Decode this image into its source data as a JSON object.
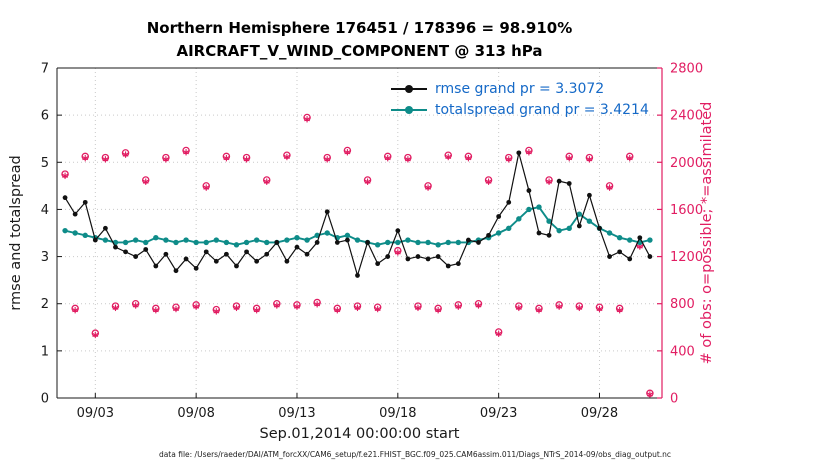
{
  "figure": {
    "title_line1": "Northern Hemisphere 176451 / 178396 = 98.910%",
    "title_line2": "AIRCRAFT_V_WIND_COMPONENT @ 313 hPa",
    "xlabel": "Sep.01,2014 00:00:00 start",
    "ylabel_left": "rmse and totalspread",
    "ylabel_right": "# of obs: o=possible; *=assimilated",
    "caption": "data file: /Users/raeder/DAI/ATM_forcXX/CAM6_setup/f.e21.FHIST_BGC.f09_025.CAM6assim.011/Diags_NTrS_2014-09/obs_diag_output.nc",
    "legend": [
      {
        "label": "rmse grand pr = 3.3072",
        "color_key": "black"
      },
      {
        "label": "totalspread grand pr = 3.4214",
        "color_key": "teal"
      }
    ],
    "colors": {
      "black": "#111111",
      "teal": "#0e8c89",
      "pink": "#e11d62",
      "blue": "#1569c7",
      "axis": "#1a1a1a",
      "grid": "#c9c9c9"
    }
  },
  "chart_data": {
    "type": "line",
    "title": "Northern Hemisphere 176451 / 178396 = 98.910%",
    "subtitle": "AIRCRAFT_V_WIND_COMPONENT @ 313 hPa",
    "xlabel": "Sep.01,2014 00:00:00 start",
    "ylabel_left": "rmse and totalspread",
    "ylabel_right": "# of obs: o=possible; *=assimilated",
    "xlim": [
      1.1,
      31.1
    ],
    "ylim_left": [
      0,
      7
    ],
    "ylim_right": [
      0,
      2800
    ],
    "grid": true,
    "legend_position": "top-inside",
    "x_ticks": {
      "days": [
        3,
        8,
        13,
        18,
        23,
        28
      ],
      "labels": [
        "09/03",
        "09/08",
        "09/13",
        "09/18",
        "09/23",
        "09/28"
      ]
    },
    "y_ticks_left": [
      0,
      1,
      2,
      3,
      4,
      5,
      6,
      7
    ],
    "y_ticks_right": [
      0,
      400,
      800,
      1200,
      1600,
      2000,
      2400,
      2800
    ],
    "x_days": [
      1.5,
      2.0,
      2.5,
      3.0,
      3.5,
      4.0,
      4.5,
      5.0,
      5.5,
      6.0,
      6.5,
      7.0,
      7.5,
      8.0,
      8.5,
      9.0,
      9.5,
      10.0,
      10.5,
      11.0,
      11.5,
      12.0,
      12.5,
      13.0,
      13.5,
      14.0,
      14.5,
      15.0,
      15.5,
      16.0,
      16.5,
      17.0,
      17.5,
      18.0,
      18.5,
      19.0,
      19.5,
      20.0,
      20.5,
      21.0,
      21.5,
      22.0,
      22.5,
      23.0,
      23.5,
      24.0,
      24.5,
      25.0,
      25.5,
      26.0,
      26.5,
      27.0,
      27.5,
      28.0,
      28.5,
      29.0,
      29.5,
      30.0,
      30.5
    ],
    "series": [
      {
        "name": "rmse",
        "axis": "left",
        "marker": "dot",
        "color_key": "black",
        "values": [
          4.25,
          3.9,
          4.15,
          3.35,
          3.6,
          3.2,
          3.1,
          3.0,
          3.15,
          2.8,
          3.05,
          2.7,
          2.95,
          2.75,
          3.1,
          2.9,
          3.05,
          2.8,
          3.1,
          2.9,
          3.05,
          3.3,
          2.9,
          3.2,
          3.05,
          3.3,
          3.95,
          3.3,
          3.35,
          2.6,
          3.3,
          2.85,
          3.0,
          3.55,
          2.95,
          3.0,
          2.95,
          3.0,
          2.8,
          2.85,
          3.35,
          3.3,
          3.45,
          3.85,
          4.15,
          5.2,
          4.4,
          3.5,
          3.45,
          4.6,
          4.55,
          3.65,
          4.3,
          3.6,
          3.0,
          3.1,
          2.95,
          3.4,
          3.0
        ]
      },
      {
        "name": "totalspread",
        "axis": "left",
        "marker": "dot",
        "color_key": "teal",
        "values": [
          3.55,
          3.5,
          3.45,
          3.4,
          3.35,
          3.3,
          3.3,
          3.35,
          3.3,
          3.4,
          3.35,
          3.3,
          3.35,
          3.3,
          3.3,
          3.35,
          3.3,
          3.25,
          3.3,
          3.35,
          3.3,
          3.3,
          3.35,
          3.4,
          3.35,
          3.45,
          3.5,
          3.4,
          3.45,
          3.35,
          3.3,
          3.25,
          3.3,
          3.3,
          3.35,
          3.3,
          3.3,
          3.25,
          3.3,
          3.3,
          3.3,
          3.35,
          3.4,
          3.5,
          3.6,
          3.8,
          4.0,
          4.05,
          3.75,
          3.55,
          3.6,
          3.9,
          3.75,
          3.6,
          3.5,
          3.4,
          3.35,
          3.3,
          3.35
        ]
      },
      {
        "name": "obs_possible",
        "axis": "right",
        "marker": "o",
        "color_key": "pink",
        "values": [
          1900,
          760,
          2050,
          550,
          2040,
          780,
          2080,
          800,
          1850,
          760,
          2040,
          770,
          2100,
          790,
          1800,
          750,
          2050,
          780,
          2040,
          760,
          1850,
          800,
          2060,
          790,
          2380,
          810,
          2040,
          760,
          2100,
          780,
          1850,
          770,
          2050,
          1250,
          2040,
          780,
          1800,
          760,
          2060,
          790,
          2050,
          800,
          1850,
          560,
          2040,
          780,
          2100,
          760,
          1850,
          790,
          2050,
          780,
          2040,
          770,
          1800,
          760,
          2050,
          1300,
          40
        ]
      },
      {
        "name": "obs_assimilated",
        "axis": "right",
        "marker": "asterisk",
        "color_key": "pink",
        "values": [
          1885,
          745,
          2035,
          535,
          2025,
          765,
          2065,
          785,
          1835,
          745,
          2025,
          755,
          2085,
          775,
          1785,
          735,
          2035,
          765,
          2025,
          745,
          1835,
          785,
          2045,
          775,
          2365,
          795,
          2025,
          745,
          2085,
          765,
          1835,
          755,
          2035,
          1235,
          2025,
          765,
          1785,
          745,
          2045,
          775,
          2035,
          785,
          1835,
          545,
          2025,
          765,
          2085,
          745,
          1835,
          775,
          2035,
          765,
          2025,
          755,
          1785,
          745,
          2035,
          1285,
          30
        ]
      }
    ]
  }
}
